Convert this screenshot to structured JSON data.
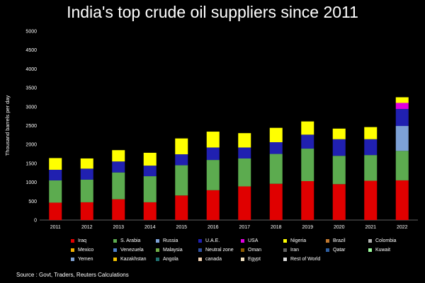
{
  "chart_data": {
    "type": "bar",
    "stacked": true,
    "title": "India's top crude oil suppliers since 2011",
    "xlabel": "",
    "ylabel": "Thousand barrels per day",
    "ylim": [
      0,
      5000
    ],
    "yticks": [
      0,
      500,
      1000,
      1500,
      2000,
      2500,
      3000,
      3500,
      4000,
      4500,
      5000
    ],
    "categories": [
      "2011",
      "2012",
      "2013",
      "2014",
      "2015",
      "2016",
      "2017",
      "2018",
      "2019",
      "2020",
      "2021",
      "2022"
    ],
    "series": [
      {
        "name": "Iraq",
        "color": "#e00000",
        "values": [
          460,
          470,
          550,
          470,
          650,
          790,
          890,
          960,
          1030,
          950,
          1040,
          1050
        ]
      },
      {
        "name": "S. Arabia",
        "color": "#5cab4f",
        "values": [
          590,
          600,
          710,
          690,
          800,
          800,
          740,
          790,
          860,
          750,
          680,
          780
        ]
      },
      {
        "name": "Russia",
        "color": "#7da1d6",
        "values": [
          0,
          0,
          0,
          0,
          0,
          0,
          0,
          0,
          0,
          0,
          0,
          660
        ]
      },
      {
        "name": "U.A.E.",
        "color": "#2020b0",
        "values": [
          280,
          290,
          290,
          280,
          290,
          330,
          290,
          310,
          370,
          440,
          420,
          450
        ]
      },
      {
        "name": "USA",
        "color": "#e000e0",
        "values": [
          0,
          0,
          0,
          0,
          0,
          0,
          0,
          0,
          0,
          0,
          0,
          160
        ]
      },
      {
        "name": "Nigeria",
        "color": "#ffff00",
        "values": [
          310,
          270,
          300,
          340,
          420,
          420,
          380,
          380,
          350,
          280,
          320,
          150
        ]
      },
      {
        "name": "Brazil",
        "color": "#c07830",
        "values": [
          0,
          0,
          0,
          0,
          0,
          0,
          0,
          0,
          0,
          0,
          0,
          0
        ]
      },
      {
        "name": "Colombia",
        "color": "#b0b0b0",
        "values": [
          0,
          0,
          0,
          0,
          0,
          0,
          0,
          0,
          0,
          0,
          0,
          0
        ]
      },
      {
        "name": "Mexico",
        "color": "#f0b000",
        "values": [
          0,
          0,
          0,
          0,
          0,
          0,
          0,
          0,
          0,
          0,
          0,
          0
        ]
      },
      {
        "name": "Venezuela",
        "color": "#4f80c8",
        "values": [
          0,
          0,
          0,
          0,
          0,
          0,
          0,
          0,
          0,
          0,
          0,
          0
        ]
      },
      {
        "name": "Malaysia",
        "color": "#70ad47",
        "values": [
          0,
          0,
          0,
          0,
          0,
          0,
          0,
          0,
          0,
          0,
          0,
          0
        ]
      },
      {
        "name": "Neutral zone",
        "color": "#3050a0",
        "values": [
          0,
          0,
          0,
          0,
          0,
          0,
          0,
          0,
          0,
          0,
          0,
          0
        ]
      },
      {
        "name": "Oman",
        "color": "#8a5a00",
        "values": [
          0,
          0,
          0,
          0,
          0,
          0,
          0,
          0,
          0,
          0,
          0,
          0
        ]
      },
      {
        "name": "Iran",
        "color": "#606060",
        "values": [
          0,
          0,
          0,
          0,
          0,
          0,
          0,
          0,
          0,
          0,
          0,
          0
        ]
      },
      {
        "name": "Qatar",
        "color": "#2e5ea0",
        "values": [
          0,
          0,
          0,
          0,
          0,
          0,
          0,
          0,
          0,
          0,
          0,
          0
        ]
      },
      {
        "name": "Kuwait",
        "color": "#9fff9f",
        "values": [
          0,
          0,
          0,
          0,
          0,
          0,
          0,
          0,
          0,
          0,
          0,
          0
        ]
      },
      {
        "name": "Yemen",
        "color": "#7fa0d0",
        "values": [
          0,
          0,
          0,
          0,
          0,
          0,
          0,
          0,
          0,
          0,
          0,
          0
        ]
      },
      {
        "name": "Kazakhstan",
        "color": "#f0c000",
        "values": [
          0,
          0,
          0,
          0,
          0,
          0,
          0,
          0,
          0,
          0,
          0,
          0
        ]
      },
      {
        "name": "Angola",
        "color": "#1f7070",
        "values": [
          0,
          0,
          0,
          0,
          0,
          0,
          0,
          0,
          0,
          0,
          0,
          0
        ]
      },
      {
        "name": "canada",
        "color": "#f0d0b0",
        "values": [
          0,
          0,
          0,
          0,
          0,
          0,
          0,
          0,
          0,
          0,
          0,
          0
        ]
      },
      {
        "name": "Egypt",
        "color": "#f0e0c0",
        "values": [
          0,
          0,
          0,
          0,
          0,
          0,
          0,
          0,
          0,
          0,
          0,
          0
        ]
      },
      {
        "name": "Rest of World",
        "color": "#d9d9d9",
        "values": [
          0,
          0,
          0,
          0,
          0,
          0,
          0,
          0,
          0,
          0,
          0,
          0
        ]
      }
    ],
    "legend_position": "bottom"
  },
  "source_text": "Source : Govt, Traders, Reuters Calculations"
}
